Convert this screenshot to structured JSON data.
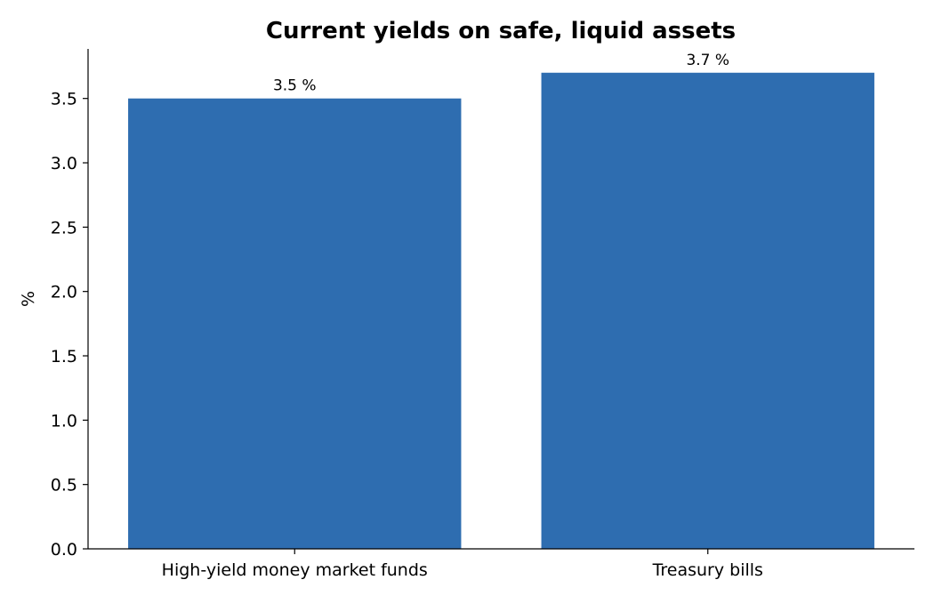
{
  "chart_data": {
    "type": "bar",
    "title": "Current yields on safe, liquid assets",
    "xlabel": "",
    "ylabel": "%",
    "categories": [
      "High-yield money market funds",
      "Treasury bills"
    ],
    "values": [
      3.5,
      3.7
    ],
    "data_labels": [
      "3.5 %",
      "3.7 %"
    ],
    "ylim": [
      0,
      3.885
    ],
    "yticks": [
      0.0,
      0.5,
      1.0,
      1.5,
      2.0,
      2.5,
      3.0,
      3.5
    ],
    "ytick_labels": [
      "0.0",
      "0.5",
      "1.0",
      "1.5",
      "2.0",
      "2.5",
      "3.0",
      "3.5"
    ],
    "grid": false,
    "legend": "none",
    "colors": {
      "bar": "#2e6db0",
      "axis": "#000000",
      "background": "#ffffff"
    }
  }
}
